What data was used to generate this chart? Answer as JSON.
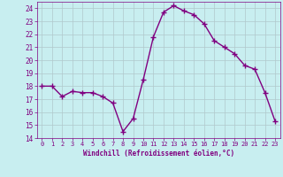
{
  "x": [
    0,
    1,
    2,
    3,
    4,
    5,
    6,
    7,
    8,
    9,
    10,
    11,
    12,
    13,
    14,
    15,
    16,
    17,
    18,
    19,
    20,
    21,
    22,
    23
  ],
  "y": [
    18.0,
    18.0,
    17.2,
    17.6,
    17.5,
    17.5,
    17.2,
    16.7,
    14.5,
    15.5,
    18.5,
    21.8,
    23.7,
    24.2,
    23.8,
    23.5,
    22.8,
    21.5,
    21.0,
    20.5,
    19.6,
    19.3,
    17.5,
    15.3
  ],
  "line_color": "#800080",
  "marker": "+",
  "marker_size": 4,
  "bg_color": "#c8eef0",
  "grid_color": "#b0c8cc",
  "xlabel": "Windchill (Refroidissement éolien,°C)",
  "xlabel_color": "#800080",
  "tick_color": "#800080",
  "label_color": "#800080",
  "ylim": [
    14,
    24.5
  ],
  "xlim": [
    -0.5,
    23.5
  ],
  "yticks": [
    14,
    15,
    16,
    17,
    18,
    19,
    20,
    21,
    22,
    23,
    24
  ],
  "xticks": [
    0,
    1,
    2,
    3,
    4,
    5,
    6,
    7,
    8,
    9,
    10,
    11,
    12,
    13,
    14,
    15,
    16,
    17,
    18,
    19,
    20,
    21,
    22,
    23
  ],
  "figsize": [
    3.2,
    2.0
  ],
  "dpi": 100
}
